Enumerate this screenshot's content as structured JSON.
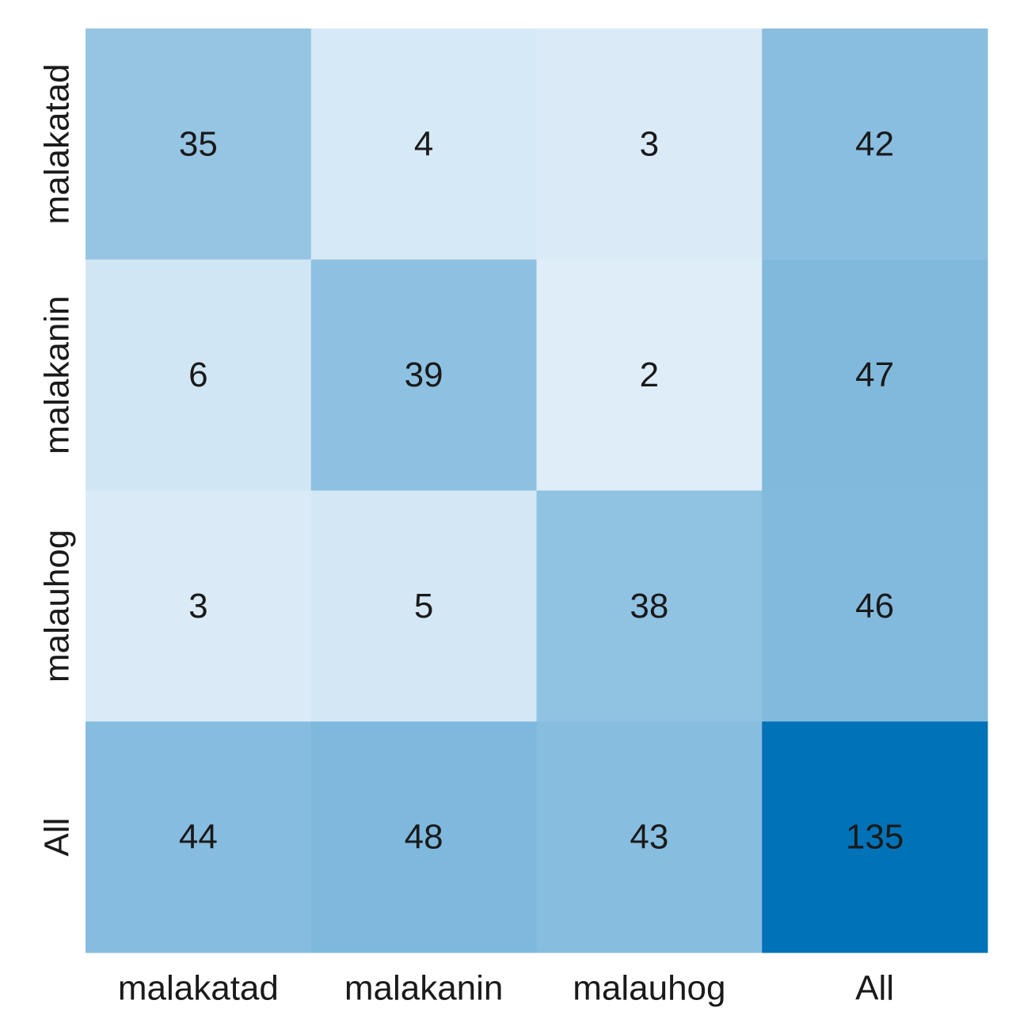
{
  "chart_data": {
    "type": "heatmap",
    "title": "",
    "xlabel": "",
    "ylabel": "",
    "x_categories": [
      "malakatad",
      "malakanin",
      "malauhog",
      "All"
    ],
    "y_categories": [
      "malakatad",
      "malakanin",
      "malauhog",
      "All"
    ],
    "values": [
      [
        35,
        4,
        3,
        42
      ],
      [
        6,
        39,
        2,
        47
      ],
      [
        3,
        5,
        38,
        46
      ],
      [
        44,
        48,
        43,
        135
      ]
    ],
    "colormap": "Blues",
    "colorbar": false,
    "grid": false,
    "colors": {
      "low": "#deedf8",
      "high": "#0072b8",
      "text": "#1a1a1a"
    }
  }
}
